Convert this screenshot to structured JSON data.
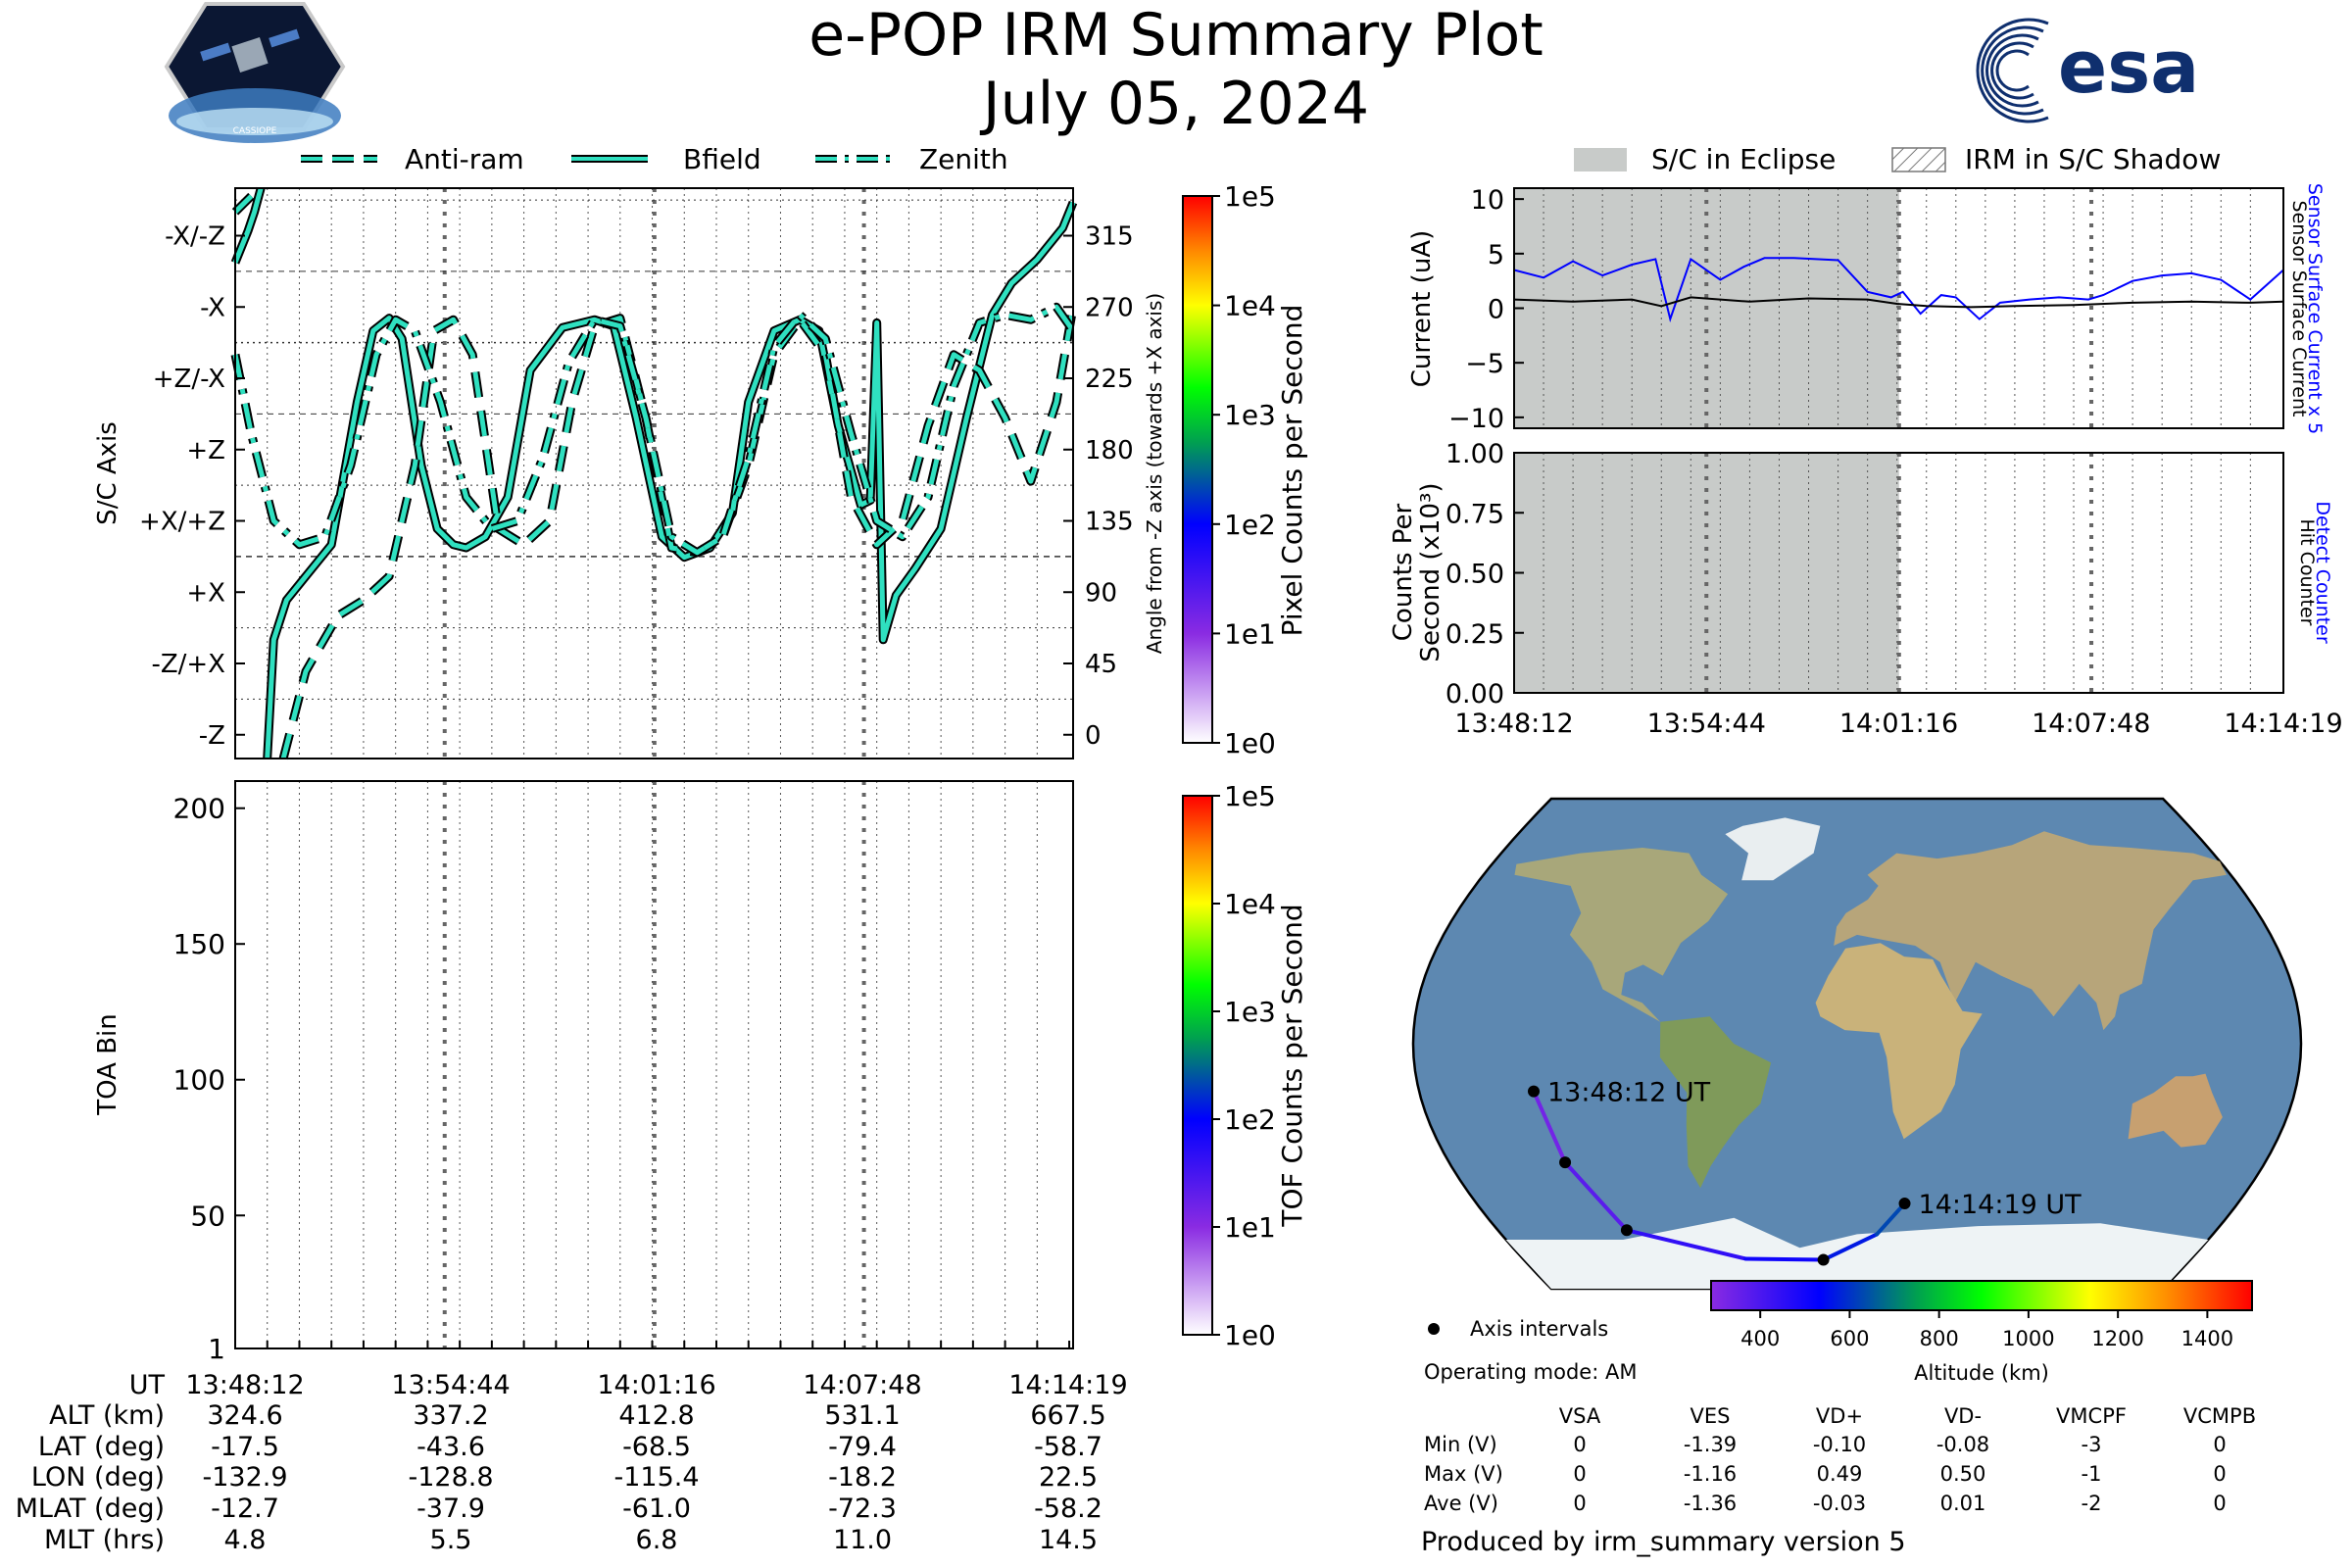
{
  "header": {
    "title": "e-POP IRM Summary Plot",
    "date": "July 05, 2024",
    "mission_logo_text": "CASSIOPE",
    "agency_logo_text": "esa"
  },
  "legend_top": {
    "items": [
      {
        "label": "Anti-ram",
        "style": "dashed"
      },
      {
        "label": "Bfield",
        "style": "solid"
      },
      {
        "label": "Zenith",
        "style": "dashdot"
      }
    ],
    "line_color": "#2fe0c0"
  },
  "legend_right": {
    "eclipse_label": "S/C in Eclipse",
    "shadow_label": "IRM in S/C Shadow",
    "eclipse_color": "#c8cbc9"
  },
  "time_ticks": [
    "13:48:12",
    "13:54:44",
    "14:01:16",
    "14:07:48",
    "14:14:19"
  ],
  "colorbars": {
    "pixel": {
      "label": "Pixel Counts per Second",
      "ticks": [
        "1e0",
        "1e1",
        "1e2",
        "1e3",
        "1e4",
        "1e5"
      ]
    },
    "tof": {
      "label": "TOF Counts per Second",
      "ticks": [
        "1e0",
        "1e1",
        "1e2",
        "1e3",
        "1e4",
        "1e5"
      ]
    }
  },
  "footer_table": {
    "row_labels": [
      "UT",
      "ALT (km)",
      "LAT (deg)",
      "LON (deg)",
      "MLAT (deg)",
      "MLT (hrs)"
    ],
    "columns": [
      [
        "13:48:12",
        "324.6",
        "-17.5",
        "-132.9",
        "-12.7",
        "4.8"
      ],
      [
        "13:54:44",
        "337.2",
        "-43.6",
        "-128.8",
        "-37.9",
        "5.5"
      ],
      [
        "14:01:16",
        "412.8",
        "-68.5",
        "-115.4",
        "-61.0",
        "6.8"
      ],
      [
        "14:07:48",
        "531.1",
        "-79.4",
        "-18.2",
        "-72.3",
        "11.0"
      ],
      [
        "14:14:19",
        "667.5",
        "-58.7",
        "22.5",
        "-58.2",
        "14.5"
      ]
    ]
  },
  "map": {
    "start_label": "13:48:12 UT",
    "end_label": "14:14:19 UT",
    "axis_intervals_label": "Axis intervals",
    "altitude_label": "Altitude (km)",
    "altitude_ticks": [
      "400",
      "600",
      "800",
      "1000",
      "1200",
      "1400"
    ],
    "altitude_range": [
      290,
      1500
    ],
    "track": [
      [
        -132.9,
        -17.5
      ],
      [
        -128.8,
        -43.6
      ],
      [
        -115.4,
        -68.5
      ],
      [
        -60,
        -79
      ],
      [
        -18.2,
        -79.4
      ],
      [
        10,
        -70
      ],
      [
        22.5,
        -58.7
      ]
    ],
    "interval_points": [
      [
        -132.9,
        -17.5
      ],
      [
        -128.8,
        -43.6
      ],
      [
        -115.4,
        -68.5
      ],
      [
        -18.2,
        -79.4
      ],
      [
        22.5,
        -58.7
      ]
    ],
    "track_altitudes": [
      324.6,
      337.2,
      412.8,
      480,
      531.1,
      610,
      667.5
    ]
  },
  "operating_mode": "Operating mode: AM",
  "voltage_table": {
    "headers": [
      "VSA",
      "VES",
      "VD+",
      "VD-",
      "VMCPF",
      "VCMPB"
    ],
    "rows": [
      {
        "label": "Min (V)",
        "values": [
          "0",
          "-1.39",
          "-0.10",
          "-0.08",
          "-3",
          "0"
        ]
      },
      {
        "label": "Max (V)",
        "values": [
          "0",
          "-1.16",
          "0.49",
          "0.50",
          "-1",
          "0"
        ]
      },
      {
        "label": "Ave (V)",
        "values": [
          "0",
          "-1.36",
          "-0.03",
          "0.01",
          "-2",
          "0"
        ]
      }
    ]
  },
  "produced_by": "Produced by irm_summary version 5",
  "chart_data": [
    {
      "type": "line",
      "id": "attitude",
      "xlabel": "",
      "ylabel": "S/C Axis",
      "ylabel_right": "Angle from -Z axis (towards +X axis)",
      "x_range_min": [
        0,
        26.12
      ],
      "ylim": [
        -15,
        345
      ],
      "y_ticks_right": [
        0,
        45,
        90,
        135,
        180,
        225,
        270,
        315
      ],
      "y_ticks_left": [
        {
          "label": "-Z",
          "value": 0
        },
        {
          "label": "-Z/+X",
          "value": 45
        },
        {
          "label": "+X",
          "value": 90
        },
        {
          "label": "+X/+Z",
          "value": 135
        },
        {
          "label": "+Z",
          "value": 180
        },
        {
          "label": "+Z/-X",
          "value": 225
        },
        {
          "label": "-X",
          "value": 270
        },
        {
          "label": "-X/-Z",
          "value": 315
        }
      ],
      "series": [
        {
          "name": "Bfield",
          "style": "solid",
          "x": [
            0,
            0.4,
            0.6,
            0.8,
            1.0,
            1.2,
            1.6,
            2.2,
            3.0,
            3.8,
            4.3,
            4.8,
            5.2,
            5.8,
            6.3,
            6.8,
            7.2,
            7.8,
            8.5,
            9.2,
            10.2,
            11.2,
            11.8,
            12.5,
            13.3,
            14.0,
            14.8,
            15.5,
            16.0,
            16.8,
            17.6,
            18.2,
            18.8,
            19.5,
            19.8,
            20.0,
            20.2,
            20.6,
            21.2,
            22.0,
            22.8,
            23.6,
            24.2,
            25.0,
            25.8,
            26.12
          ],
          "y": [
            298,
            318,
            330,
            345,
            -15,
            60,
            85,
            100,
            120,
            210,
            255,
            263,
            250,
            170,
            130,
            120,
            118,
            125,
            150,
            230,
            257,
            262,
            258,
            200,
            125,
            112,
            118,
            140,
            210,
            255,
            262,
            255,
            195,
            145,
            148,
            260,
            60,
            88,
            105,
            130,
            200,
            265,
            285,
            300,
            320,
            336
          ]
        },
        {
          "name": "Anti-ram",
          "style": "dashed",
          "x": [
            0,
            0.5,
            1.5,
            2.2,
            3.2,
            4.0,
            4.8,
            5.6,
            6.2,
            6.8,
            7.4,
            8.2,
            9.0,
            9.8,
            10.5,
            11.2,
            12.0,
            12.8,
            13.6,
            14.4,
            15.2,
            16.0,
            16.8,
            17.6,
            18.4,
            19.2,
            20.0,
            20.8,
            21.6,
            22.4,
            23.2,
            24.0,
            24.8,
            25.6,
            26.12
          ],
          "y": [
            330,
            340,
            -15,
            40,
            75,
            85,
            100,
            170,
            255,
            262,
            240,
            130,
            120,
            135,
            210,
            258,
            263,
            200,
            118,
            115,
            125,
            170,
            240,
            262,
            240,
            150,
            120,
            135,
            195,
            240,
            230,
            200,
            160,
            210,
            270
          ]
        },
        {
          "name": "Zenith",
          "style": "dashdot",
          "x": [
            0,
            0.5,
            1.2,
            2.0,
            2.8,
            3.6,
            4.4,
            5.0,
            5.6,
            6.4,
            7.2,
            8.0,
            8.8,
            9.6,
            10.4,
            11.2,
            12.0,
            12.8,
            13.6,
            14.4,
            15.2,
            16.0,
            16.8,
            17.6,
            18.4,
            19.2,
            20.0,
            20.8,
            21.6,
            22.4,
            23.2,
            24.0,
            24.8,
            25.6,
            26.12
          ],
          "y": [
            240,
            190,
            135,
            120,
            125,
            170,
            240,
            262,
            255,
            210,
            150,
            130,
            135,
            175,
            235,
            262,
            258,
            200,
            125,
            115,
            125,
            175,
            245,
            265,
            250,
            190,
            135,
            125,
            150,
            220,
            260,
            265,
            262,
            270,
            255
          ]
        }
      ]
    },
    {
      "type": "heatmap",
      "id": "toa",
      "ylabel": "TOA Bin",
      "ylim": [
        1,
        210
      ],
      "y_ticks": [
        1,
        50,
        100,
        150,
        200
      ],
      "x_range_min": [
        0,
        26.12
      ],
      "values": []
    },
    {
      "type": "line",
      "id": "current",
      "ylabel": "Current (uA)",
      "ylabel_right_1": "Sensor Surface Current x 5",
      "ylabel_right_2": "Sensor Surface Current",
      "ylim": [
        -11,
        11
      ],
      "y_ticks": [
        -10,
        -5,
        0,
        5,
        10
      ],
      "x_range_min": [
        0,
        26.12
      ],
      "eclipse_range_min": [
        0,
        13.07
      ],
      "series": [
        {
          "name": "Sensor Surface Current x 5",
          "color": "#0000ff",
          "x": [
            0,
            1,
            2,
            3,
            4,
            4.8,
            5.3,
            6,
            7,
            7.8,
            8.5,
            9.5,
            11,
            12,
            12.8,
            13.2,
            13.8,
            14.5,
            15,
            15.8,
            16.5,
            17.5,
            18.5,
            19.5,
            20,
            21,
            22,
            23,
            24,
            25,
            26.12
          ],
          "y": [
            3.5,
            2.8,
            4.3,
            3.0,
            4.0,
            4.5,
            -1.0,
            4.5,
            2.6,
            3.8,
            4.6,
            4.6,
            4.4,
            1.5,
            1.0,
            1.5,
            -0.5,
            1.2,
            1.0,
            -1.0,
            0.5,
            0.8,
            1.0,
            0.8,
            1.2,
            2.5,
            3.0,
            3.2,
            2.6,
            0.8,
            3.5
          ]
        },
        {
          "name": "Sensor Surface Current",
          "color": "#000000",
          "x": [
            0,
            2,
            4,
            5,
            6,
            8,
            10,
            12,
            13,
            14,
            15.5,
            17,
            19,
            21,
            23,
            25,
            26.12
          ],
          "y": [
            0.8,
            0.6,
            0.8,
            0.2,
            1.0,
            0.6,
            0.9,
            0.8,
            0.4,
            0.2,
            0.1,
            0.2,
            0.3,
            0.5,
            0.6,
            0.5,
            0.6
          ]
        }
      ]
    },
    {
      "type": "line",
      "id": "counts",
      "ylabel": "Counts Per Second (x10³)",
      "ylabel_right_1": "Detect Counter",
      "ylabel_right_2": "Hit Counter",
      "ylim": [
        0,
        1
      ],
      "y_ticks": [
        "0.00",
        "0.25",
        "0.50",
        "0.75",
        "1.00"
      ],
      "x_range_min": [
        0,
        26.12
      ],
      "eclipse_range_min": [
        0,
        13.07
      ],
      "series": [
        {
          "name": "Detect Counter",
          "color": "#0000ff",
          "x": [
            0,
            26.12
          ],
          "y": [
            0,
            0
          ]
        }
      ]
    }
  ]
}
